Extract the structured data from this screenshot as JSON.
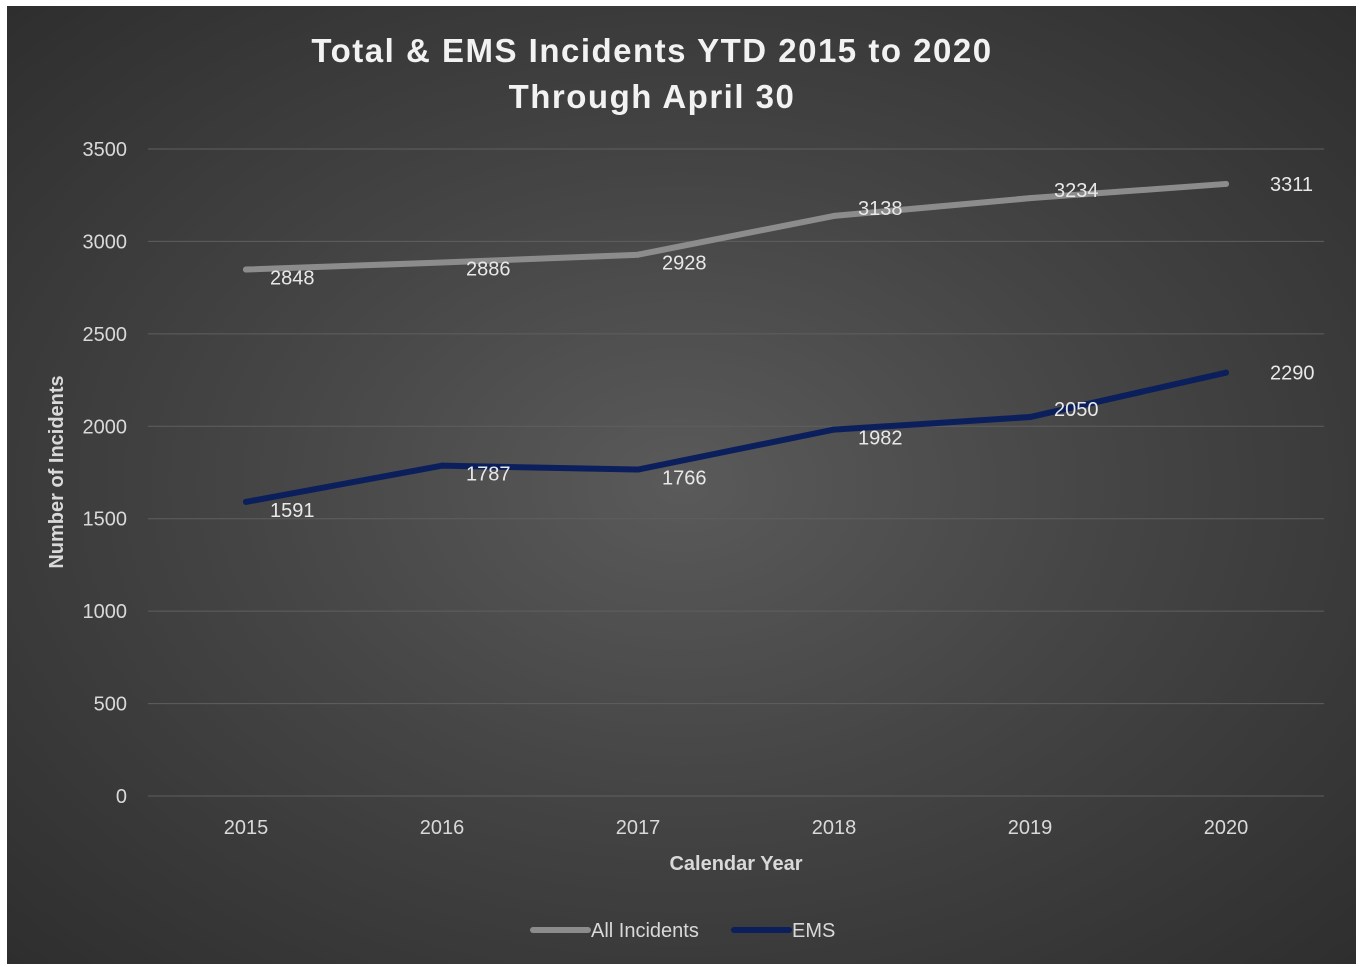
{
  "chart_data": {
    "type": "line",
    "title": [
      "Total & EMS Incidents YTD 2015 to 2020",
      "Through April 30"
    ],
    "xlabel": "Calendar Year",
    "ylabel": "Number of Incidents",
    "categories": [
      "2015",
      "2016",
      "2017",
      "2018",
      "2019",
      "2020"
    ],
    "ylim": [
      0,
      3500
    ],
    "yticks": [
      0,
      500,
      1000,
      1500,
      2000,
      2500,
      3000,
      3500
    ],
    "grid": true,
    "legend_position": "bottom",
    "series": [
      {
        "name": "All Incidents",
        "color": "#8c8c8c",
        "values": [
          2848,
          2886,
          2928,
          3138,
          3234,
          3311
        ]
      },
      {
        "name": "EMS",
        "color": "#0b1f5c",
        "values": [
          1591,
          1787,
          1766,
          1982,
          2050,
          2290
        ]
      }
    ]
  }
}
